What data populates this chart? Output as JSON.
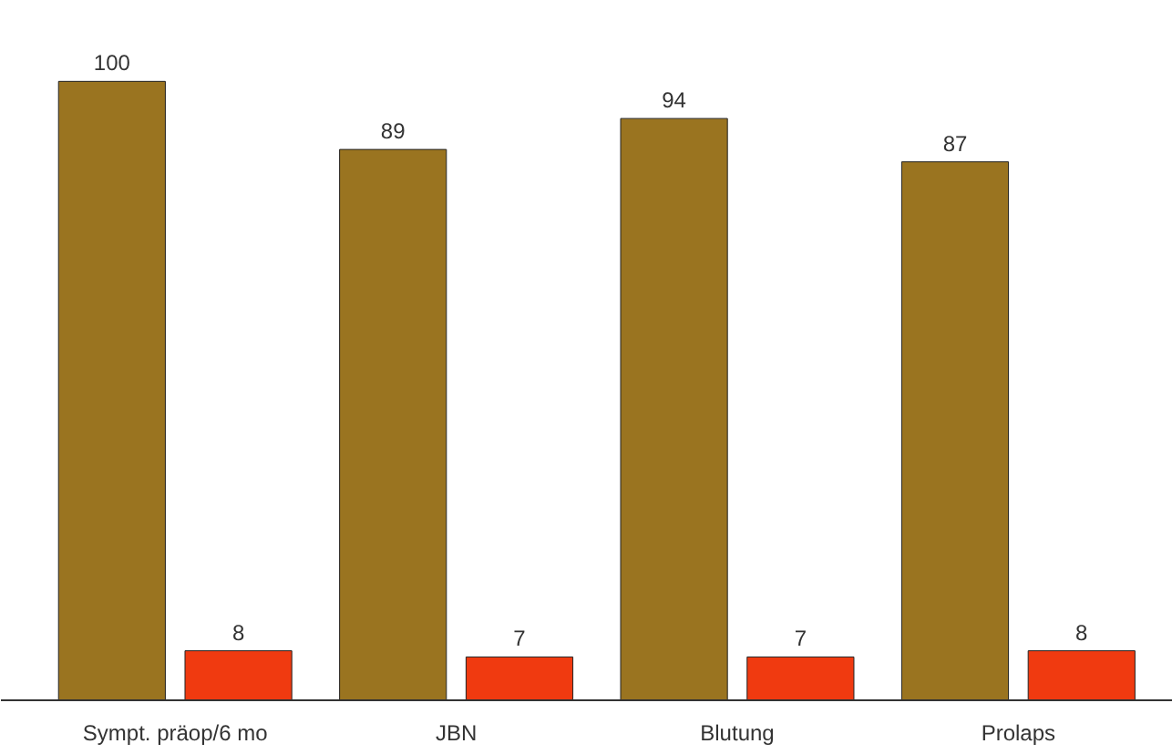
{
  "chart_data": {
    "type": "bar",
    "categories": [
      "Sympt. präop/6 mo",
      "JBN",
      "Blutung",
      "Prolaps"
    ],
    "series": [
      {
        "color": "#9a7420",
        "values": [
          100,
          89,
          94,
          87
        ]
      },
      {
        "color": "#f03a10",
        "values": [
          8,
          7,
          7,
          8
        ]
      }
    ],
    "data_labels": true,
    "tick_labels": "x"
  }
}
